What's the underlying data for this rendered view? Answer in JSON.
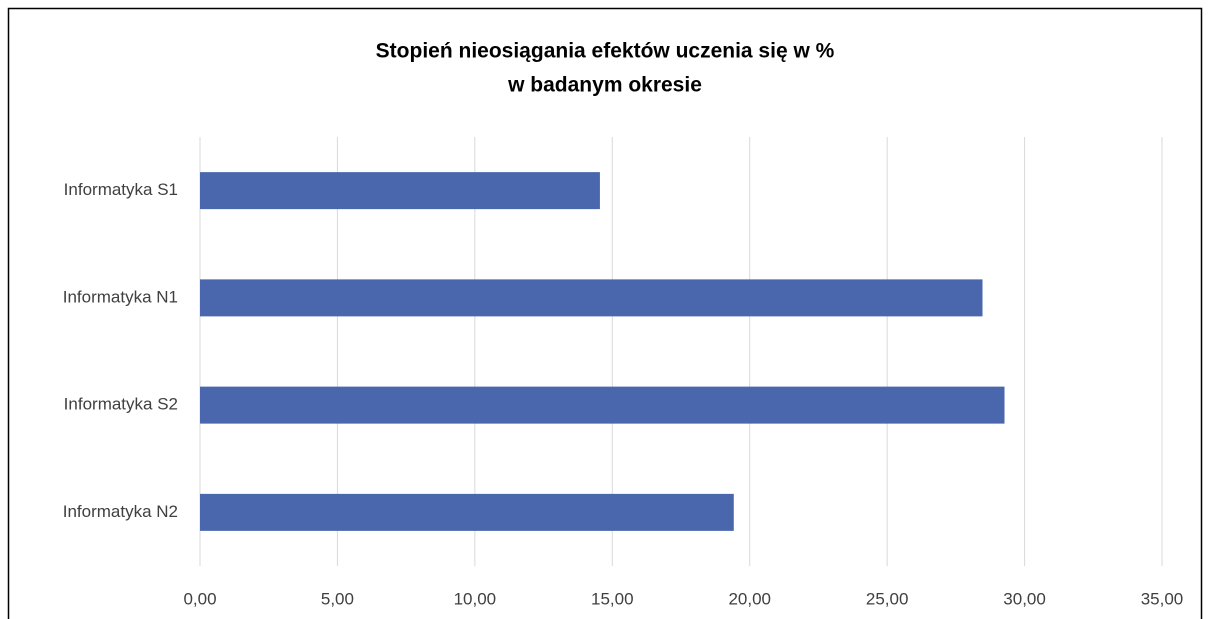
{
  "chart_data": {
    "type": "hbar",
    "title": [
      "Stopień nieosiągania efektów uczenia się w %",
      "w badanym okresie"
    ],
    "categories": [
      "Informatyka S1",
      "Informatyka N1",
      "Informatyka S2",
      "Informatyka N2"
    ],
    "values": [
      14.55,
      28.47,
      29.27,
      19.42
    ],
    "color": "#4a67ae",
    "xlim": [
      0,
      35
    ],
    "xticks": [
      {
        "value": 0,
        "label": "0,00"
      },
      {
        "value": 5,
        "label": "5,00"
      },
      {
        "value": 10,
        "label": "10,00"
      },
      {
        "value": 15,
        "label": "15,00"
      },
      {
        "value": 20,
        "label": "20,00"
      },
      {
        "value": 25,
        "label": "25,00"
      },
      {
        "value": 30,
        "label": "30,00"
      },
      {
        "value": 35,
        "label": "35,00"
      }
    ],
    "grid": true
  }
}
